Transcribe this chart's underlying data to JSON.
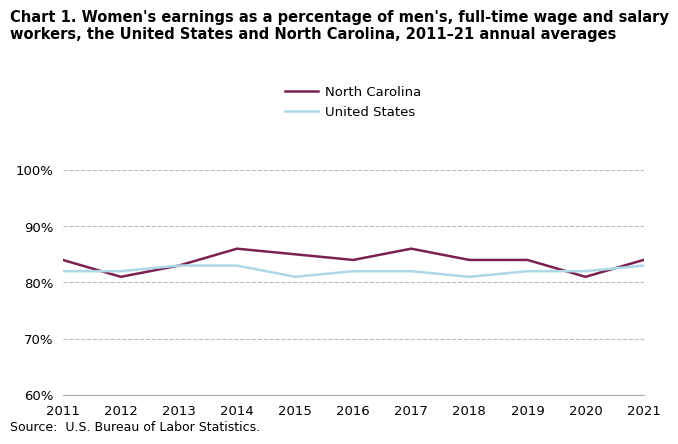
{
  "years": [
    2011,
    2012,
    2013,
    2014,
    2015,
    2016,
    2017,
    2018,
    2019,
    2020,
    2021
  ],
  "nc_values": [
    84.0,
    81.0,
    83.0,
    86.0,
    85.0,
    84.0,
    86.0,
    84.0,
    84.0,
    81.0,
    84.0
  ],
  "us_values": [
    82.0,
    82.0,
    83.0,
    83.0,
    81.0,
    82.0,
    82.0,
    81.0,
    82.0,
    82.0,
    83.0
  ],
  "nc_color": "#7B2152",
  "us_color": "#ADD8E6",
  "title_line1": "Chart 1. Women's earnings as a percentage of men's, full-time wage and salary",
  "title_line2": "workers, the United States and North Carolina, 2011–21 annual averages",
  "ylim": [
    60,
    100
  ],
  "yticks": [
    60,
    70,
    80,
    90,
    100
  ],
  "source_text": "Source:  U.S. Bureau of Labor Statistics.",
  "nc_label": "North Carolina",
  "us_label": "United States",
  "line_width": 1.8,
  "background_color": "#ffffff",
  "grid_color": "#bbbbbb",
  "title_fontsize": 10.5,
  "tick_fontsize": 9.5,
  "legend_fontsize": 9.5,
  "source_fontsize": 9
}
